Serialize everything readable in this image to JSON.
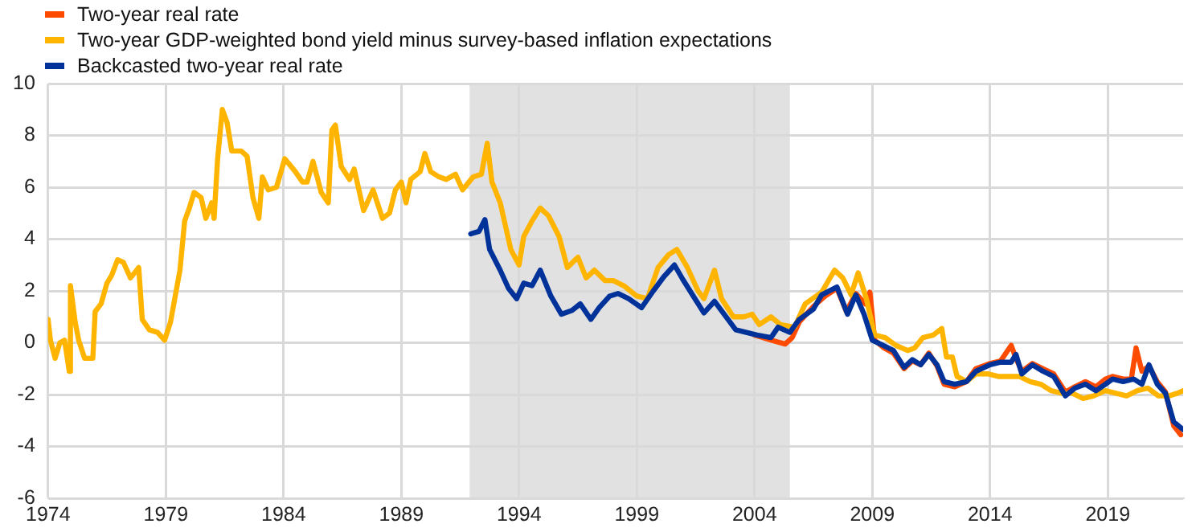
{
  "chart_data": {
    "type": "line",
    "xlim": [
      1974,
      2022.2
    ],
    "xticks": [
      1974,
      1979,
      1984,
      1989,
      1994,
      1999,
      2004,
      2009,
      2014,
      2019
    ],
    "ylim": [
      -6,
      10
    ],
    "yticks": [
      -6,
      -4,
      -2,
      0,
      2,
      4,
      6,
      8,
      10
    ],
    "grid": true,
    "legend": "top left",
    "marker": "none",
    "line_style": "solid",
    "bands": [
      {
        "axis": "x",
        "from": 1991.9,
        "to": 2005.5,
        "color": "#e1e1e1"
      }
    ],
    "series": [
      {
        "name": "Two-year real rate",
        "color": "#ff4b00",
        "x": [
          2004.0,
          2004.7,
          2005.3,
          2005.6,
          2005.9,
          2006.5,
          2007.0,
          2007.5,
          2007.9,
          2008.3,
          2008.7,
          2008.9,
          2009.1,
          2009.5,
          2009.9,
          2010.35,
          2010.7,
          2011.05,
          2011.4,
          2011.75,
          2012.05,
          2012.5,
          2013.0,
          2013.4,
          2014.0,
          2014.45,
          2014.9,
          2015.1,
          2015.35,
          2015.8,
          2016.25,
          2016.7,
          2017.2,
          2017.6,
          2018.05,
          2018.5,
          2018.9,
          2019.2,
          2019.65,
          2020.0,
          2020.2,
          2020.45,
          2020.75,
          2021.1,
          2021.45,
          2021.8,
          2022.1
        ],
        "values": [
          0.3,
          0.1,
          -0.05,
          0.2,
          0.8,
          1.4,
          1.8,
          2.1,
          1.2,
          1.9,
          1.5,
          1.95,
          0.1,
          -0.2,
          -0.4,
          -1.0,
          -0.7,
          -0.85,
          -0.4,
          -0.9,
          -1.6,
          -1.7,
          -1.5,
          -1.0,
          -0.8,
          -0.7,
          -0.1,
          -0.6,
          -1.1,
          -0.8,
          -1.0,
          -1.2,
          -1.9,
          -1.7,
          -1.5,
          -1.7,
          -1.4,
          -1.3,
          -1.4,
          -1.4,
          -0.2,
          -1.1,
          -0.9,
          -1.5,
          -1.9,
          -3.2,
          -3.55
        ]
      },
      {
        "name": "Two-year GDP-weighted bond yield minus survey-based inflation expectations",
        "color": "#ffb400",
        "x": [
          1974.0,
          1974.1,
          1974.3,
          1974.5,
          1974.7,
          1974.9,
          1974.95,
          1975.15,
          1975.3,
          1975.55,
          1975.9,
          1976.0,
          1976.25,
          1976.5,
          1976.7,
          1976.95,
          1977.2,
          1977.5,
          1977.85,
          1978.0,
          1978.3,
          1978.65,
          1978.95,
          1979.2,
          1979.6,
          1979.8,
          1980.0,
          1980.2,
          1980.5,
          1980.7,
          1980.95,
          1981.05,
          1981.2,
          1981.4,
          1981.6,
          1981.8,
          1982.2,
          1982.45,
          1982.7,
          1982.95,
          1983.1,
          1983.35,
          1983.7,
          1984.05,
          1984.5,
          1984.8,
          1985.0,
          1985.25,
          1985.6,
          1985.9,
          1986.05,
          1986.2,
          1986.45,
          1986.8,
          1987.0,
          1987.4,
          1987.8,
          1988.2,
          1988.5,
          1988.75,
          1989.0,
          1989.2,
          1989.4,
          1989.8,
          1990.0,
          1990.25,
          1990.6,
          1990.9,
          1991.3,
          1991.6,
          1992.05,
          1992.4,
          1992.65,
          1992.85,
          1993.2,
          1993.65,
          1994.0,
          1994.2,
          1994.55,
          1994.9,
          1995.25,
          1995.7,
          1996.05,
          1996.5,
          1996.85,
          1997.2,
          1997.65,
          1998.0,
          1998.45,
          1999.0,
          1999.45,
          1999.9,
          2000.35,
          2000.7,
          2001.15,
          2001.6,
          2001.85,
          2002.3,
          2002.6,
          2003.1,
          2003.55,
          2003.9,
          2004.2,
          2004.7,
          2005.1,
          2005.7,
          2006.15,
          2006.85,
          2007.4,
          2007.75,
          2008.1,
          2008.4,
          2008.75,
          2009.1,
          2009.55,
          2010.0,
          2010.5,
          2010.8,
          2011.15,
          2011.6,
          2011.95,
          2012.15,
          2012.4,
          2012.6,
          2013.0,
          2013.4,
          2013.9,
          2014.35,
          2014.8,
          2015.25,
          2015.7,
          2016.15,
          2016.6,
          2017.05,
          2017.5,
          2017.95,
          2018.4,
          2018.9,
          2019.35,
          2019.8,
          2020.25,
          2020.7,
          2021.15,
          2021.6,
          2021.95,
          2022.2
        ],
        "values": [
          0.9,
          0.1,
          -0.6,
          0,
          0.1,
          -1.1,
          2.2,
          0.8,
          0.1,
          -0.6,
          -0.6,
          1.2,
          1.5,
          2.3,
          2.6,
          3.2,
          3.1,
          2.5,
          2.9,
          0.9,
          0.5,
          0.4,
          0.1,
          0.8,
          2.8,
          4.7,
          5.2,
          5.8,
          5.6,
          4.8,
          5.4,
          4.8,
          7.1,
          9.0,
          8.5,
          7.4,
          7.4,
          7.2,
          5.6,
          4.8,
          6.4,
          5.9,
          6.0,
          7.1,
          6.6,
          6.2,
          6.2,
          7.0,
          5.8,
          5.4,
          8.2,
          8.4,
          6.8,
          6.3,
          6.7,
          5.1,
          5.9,
          4.8,
          5.0,
          5.9,
          6.2,
          5.4,
          6.3,
          6.6,
          7.3,
          6.6,
          6.4,
          6.3,
          6.5,
          5.9,
          6.4,
          6.5,
          7.7,
          6.2,
          5.4,
          3.6,
          3.0,
          4.1,
          4.7,
          5.2,
          4.9,
          4.1,
          2.9,
          3.3,
          2.5,
          2.8,
          2.4,
          2.4,
          2.2,
          1.8,
          1.7,
          2.9,
          3.4,
          3.6,
          2.9,
          2.0,
          1.7,
          2.8,
          1.7,
          1.0,
          1.0,
          1.1,
          0.7,
          1.0,
          0.7,
          0.6,
          1.5,
          1.95,
          2.8,
          2.5,
          1.85,
          2.7,
          1.7,
          0.3,
          0.2,
          -0.1,
          -0.3,
          -0.2,
          0.2,
          0.3,
          0.55,
          -0.55,
          -0.55,
          -1.3,
          -1.5,
          -1.2,
          -1.2,
          -1.3,
          -1.3,
          -1.3,
          -1.5,
          -1.6,
          -1.85,
          -1.95,
          -1.95,
          -2.15,
          -2.05,
          -1.85,
          -1.95,
          -2.05,
          -1.85,
          -1.75,
          -2.05,
          -2.05,
          -1.95,
          -1.85
        ]
      },
      {
        "name": "Backcasted two-year real rate",
        "color": "#003299",
        "x": [
          1991.95,
          1992.3,
          1992.55,
          1992.75,
          1993.2,
          1993.55,
          1993.9,
          1994.2,
          1994.55,
          1994.9,
          1995.35,
          1995.8,
          1996.25,
          1996.6,
          1997.05,
          1997.4,
          1997.85,
          1998.2,
          1998.65,
          1999.2,
          1999.7,
          2000.15,
          2000.6,
          2000.95,
          2001.4,
          2001.85,
          2002.3,
          2002.75,
          2003.2,
          2003.65,
          2004.1,
          2004.7,
          2005.0,
          2005.5,
          2005.9,
          2006.5,
          2006.85,
          2007.5,
          2007.95,
          2008.3,
          2008.65,
          2009.0,
          2009.45,
          2009.9,
          2010.35,
          2010.7,
          2011.05,
          2011.4,
          2011.75,
          2012.05,
          2012.5,
          2013.0,
          2013.4,
          2014.0,
          2014.45,
          2014.9,
          2015.1,
          2015.35,
          2015.8,
          2016.25,
          2016.7,
          2017.2,
          2017.6,
          2018.05,
          2018.5,
          2018.9,
          2019.2,
          2019.65,
          2020.1,
          2020.45,
          2020.75,
          2021.1,
          2021.45,
          2021.8,
          2022.2
        ],
        "values": [
          4.2,
          4.3,
          4.75,
          3.6,
          2.8,
          2.1,
          1.7,
          2.3,
          2.2,
          2.8,
          1.8,
          1.1,
          1.25,
          1.5,
          0.9,
          1.35,
          1.8,
          1.9,
          1.7,
          1.35,
          2.0,
          2.55,
          3.0,
          2.45,
          1.8,
          1.15,
          1.6,
          1.05,
          0.5,
          0.4,
          0.3,
          0.2,
          0.6,
          0.4,
          0.9,
          1.3,
          1.85,
          2.15,
          1.1,
          1.85,
          1.1,
          0.1,
          -0.1,
          -0.3,
          -0.95,
          -0.65,
          -0.85,
          -0.45,
          -0.85,
          -1.5,
          -1.6,
          -1.5,
          -1.1,
          -0.85,
          -0.75,
          -0.75,
          -0.45,
          -1.2,
          -0.85,
          -1.1,
          -1.3,
          -2.05,
          -1.75,
          -1.6,
          -1.85,
          -1.6,
          -1.4,
          -1.5,
          -1.4,
          -1.6,
          -0.85,
          -1.6,
          -1.95,
          -3.05,
          -3.35
        ]
      }
    ]
  }
}
